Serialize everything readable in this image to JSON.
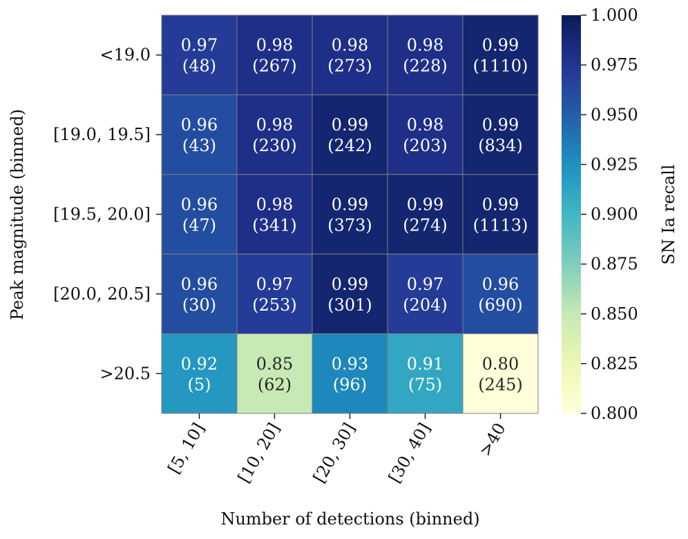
{
  "chart_data": {
    "type": "heatmap",
    "xlabel": "Number of detections (binned)",
    "ylabel": "Peak magnitude (binned)",
    "x_categories": [
      "[5, 10]",
      "[10, 20]",
      "[20, 30]",
      "[30, 40]",
      ">40"
    ],
    "y_categories": [
      "<19.0",
      "[19.0, 19.5]",
      "[19.5, 20.0]",
      "[20.0, 20.5]",
      ">20.5"
    ],
    "values": [
      [
        0.97,
        0.98,
        0.98,
        0.98,
        0.99
      ],
      [
        0.96,
        0.98,
        0.99,
        0.98,
        0.99
      ],
      [
        0.96,
        0.98,
        0.99,
        0.99,
        0.99
      ],
      [
        0.96,
        0.97,
        0.99,
        0.97,
        0.96
      ],
      [
        0.92,
        0.85,
        0.93,
        0.91,
        0.8
      ]
    ],
    "value_labels": [
      [
        "0.97",
        "0.98",
        "0.98",
        "0.98",
        "0.99"
      ],
      [
        "0.96",
        "0.98",
        "0.99",
        "0.98",
        "0.99"
      ],
      [
        "0.96",
        "0.98",
        "0.99",
        "0.99",
        "0.99"
      ],
      [
        "0.96",
        "0.97",
        "0.99",
        "0.97",
        "0.96"
      ],
      [
        "0.92",
        "0.85",
        "0.93",
        "0.91",
        "0.80"
      ]
    ],
    "counts": [
      [
        "(48)",
        "(267)",
        "(273)",
        "(228)",
        "(1110)"
      ],
      [
        "(43)",
        "(230)",
        "(242)",
        "(203)",
        "(834)"
      ],
      [
        "(47)",
        "(341)",
        "(373)",
        "(274)",
        "(1113)"
      ],
      [
        "(30)",
        "(253)",
        "(301)",
        "(204)",
        "(690)"
      ],
      [
        "(5)",
        "(62)",
        "(96)",
        "(75)",
        "(245)"
      ]
    ],
    "colorbar": {
      "label": "SN Ia recall",
      "range": [
        0.8,
        1.0
      ],
      "ticks": [
        "0.800",
        "0.825",
        "0.850",
        "0.875",
        "0.900",
        "0.925",
        "0.950",
        "0.975",
        "1.000"
      ],
      "colormap": "YlGnBu"
    }
  }
}
